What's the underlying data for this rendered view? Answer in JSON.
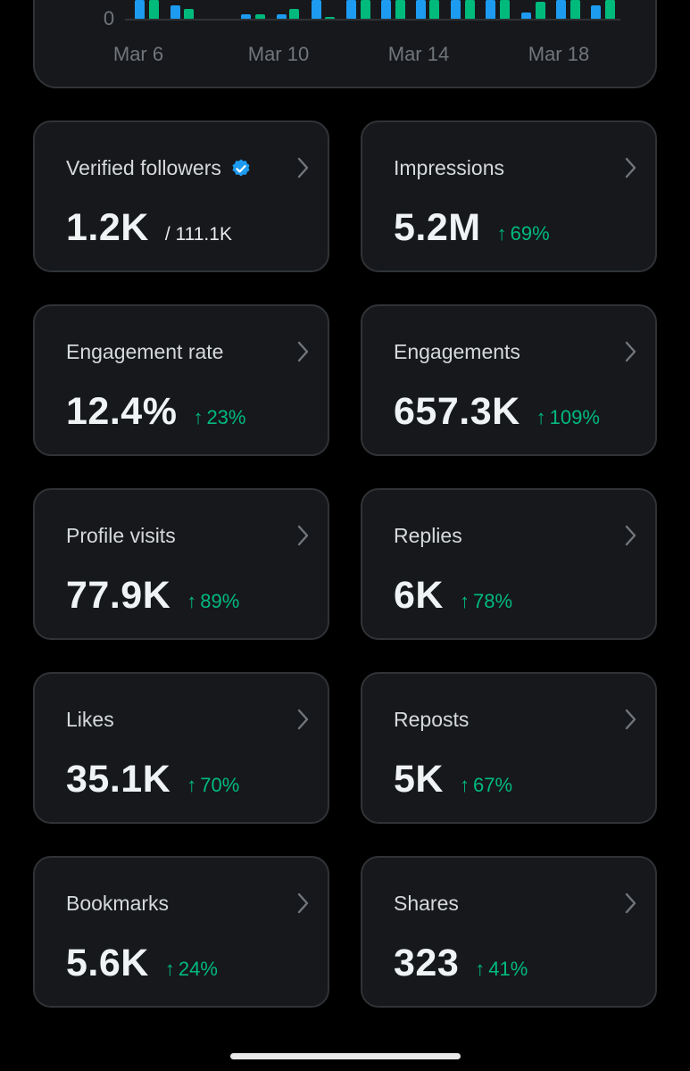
{
  "chart": {
    "y_zero_label": "0",
    "x_labels": [
      "Mar 6",
      "Mar 10",
      "Mar 14",
      "Mar 18"
    ],
    "colors": {
      "blue": "#1d9bf0",
      "green": "#00ba7c"
    }
  },
  "cards": [
    {
      "title": "Verified followers",
      "value": "1.2K",
      "sub": "/ 111.1K",
      "has_verified_badge": true
    },
    {
      "title": "Impressions",
      "value": "5.2M",
      "trend": "69%"
    },
    {
      "title": "Engagement rate",
      "value": "12.4%",
      "trend": "23%"
    },
    {
      "title": "Engagements",
      "value": "657.3K",
      "trend": "109%"
    },
    {
      "title": "Profile visits",
      "value": "77.9K",
      "trend": "89%"
    },
    {
      "title": "Replies",
      "value": "6K",
      "trend": "78%"
    },
    {
      "title": "Likes",
      "value": "35.1K",
      "trend": "70%"
    },
    {
      "title": "Reposts",
      "value": "5K",
      "trend": "67%"
    },
    {
      "title": "Bookmarks",
      "value": "5.6K",
      "trend": "24%"
    },
    {
      "title": "Shares",
      "value": "323",
      "trend": "41%"
    }
  ],
  "trend_arrow": "↑",
  "icons": {
    "chevron": "chevron-right-icon",
    "verified": "verified-badge-icon"
  },
  "accent": "#00ba7c"
}
